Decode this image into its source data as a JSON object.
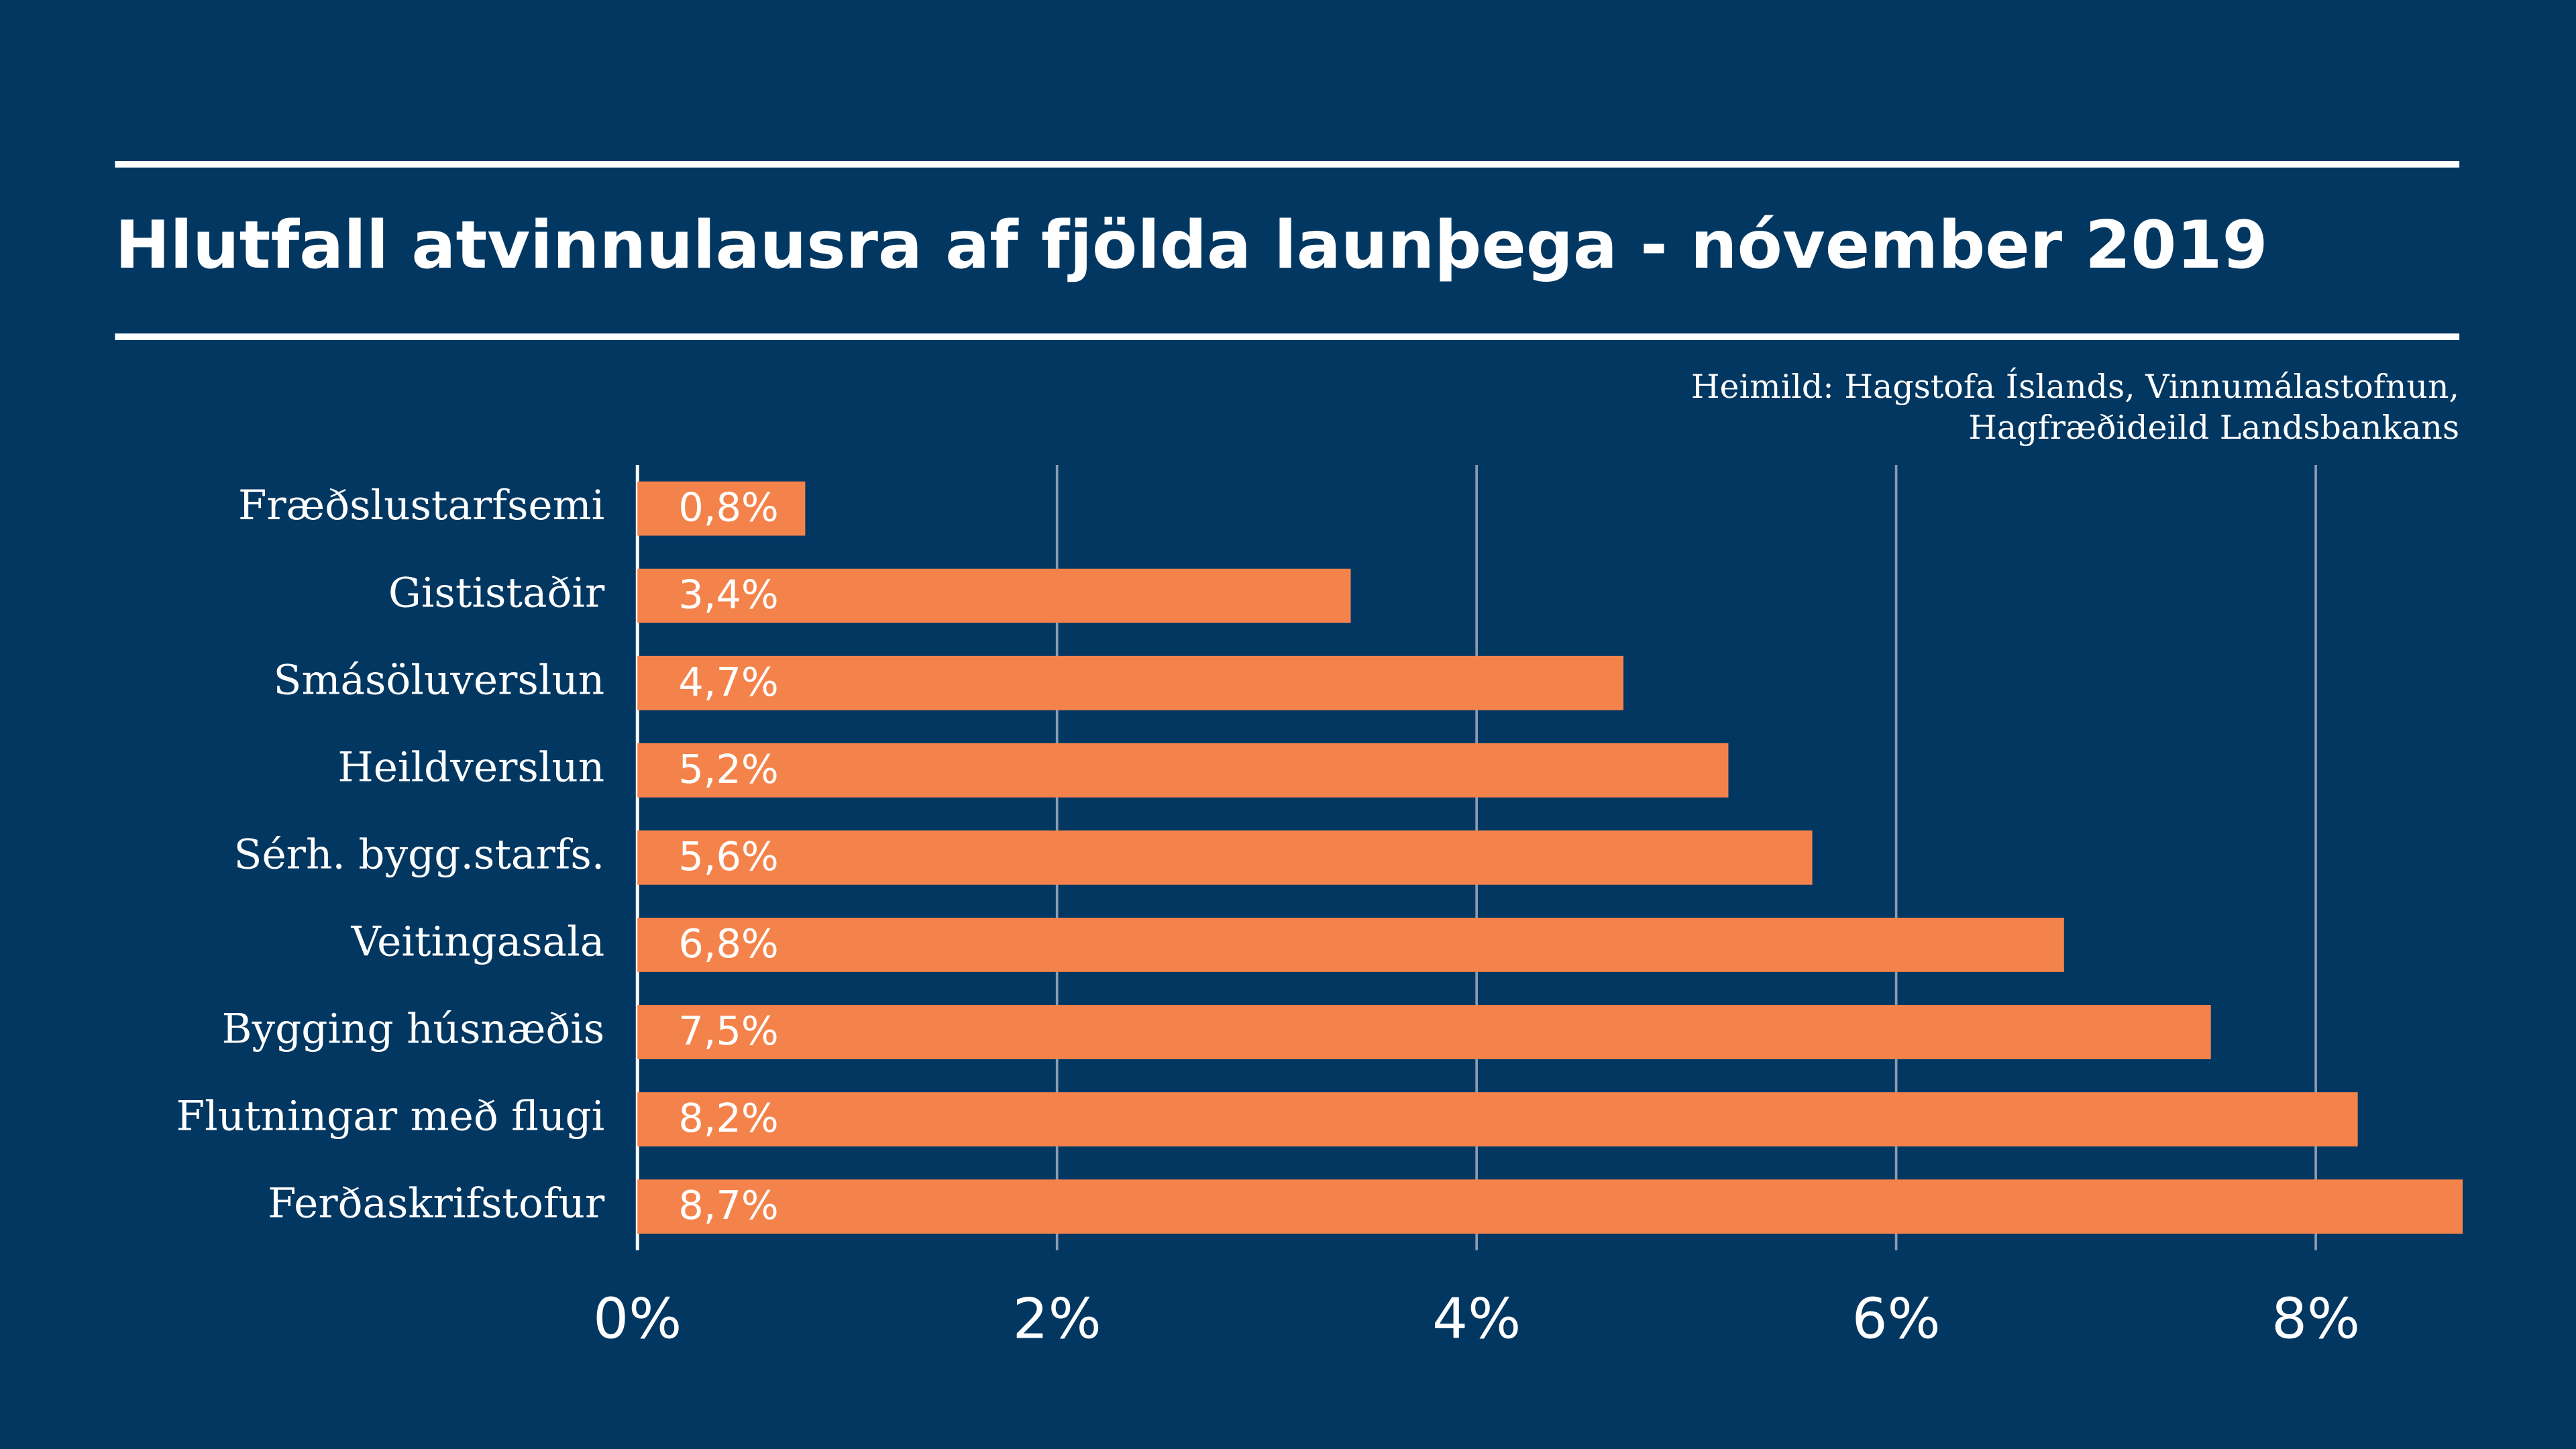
{
  "chart_data": {
    "type": "bar",
    "orientation": "horizontal",
    "title": "Hlutfall atvinnulausra af fjölda launþega - nóvember 2019",
    "source": [
      "Heimild: Hagstofa Íslands, Vinnumálastofnun,",
      "Hagfræðideild Landsbankans"
    ],
    "categories": [
      "Fræðslustarfsemi",
      "Gististaðir",
      "Smásöluverslun",
      "Heildverslun",
      "Sérh. bygg.starfs.",
      "Veitingasala",
      "Bygging húsnæðis",
      "Flutningar með flugi",
      "Ferðaskrifstofur"
    ],
    "values": [
      0.8,
      3.4,
      4.7,
      5.2,
      5.6,
      6.8,
      7.5,
      8.2,
      8.7
    ],
    "value_labels": [
      "0,8%",
      "3,4%",
      "4,7%",
      "5,2%",
      "5,6%",
      "6,8%",
      "7,5%",
      "8,2%",
      "8,7%"
    ],
    "color": "#f4834b",
    "xlim": [
      0,
      8.7
    ],
    "xticks": [
      {
        "value": 0,
        "label": "0%"
      },
      {
        "value": 2,
        "label": "2%"
      },
      {
        "value": 4,
        "label": "4%"
      },
      {
        "value": 6,
        "label": "6%"
      },
      {
        "value": 8,
        "label": "8%"
      }
    ],
    "grid": true
  }
}
